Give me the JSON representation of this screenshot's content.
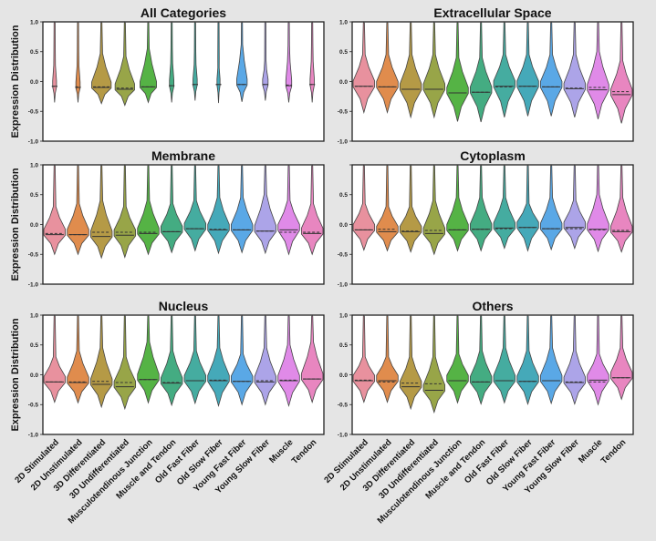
{
  "chart_data": {
    "type": "violin",
    "ylabel": "Expression Distribution",
    "ylim": [
      -1.0,
      1.0
    ],
    "categories": [
      "2D Stimulated",
      "2D Unstimulated",
      "3D Differentiated",
      "3D Undifferentiated",
      "Musculotendinous Junction",
      "Muscle and Tendon",
      "Old Fast Fiber",
      "Old Slow Fiber",
      "Young Fast Fiber",
      "Young Slow Fiber",
      "Muscle",
      "Tendon"
    ],
    "colors": [
      "#e8919e",
      "#e08c4d",
      "#b59a46",
      "#98a548",
      "#55b345",
      "#44ac82",
      "#45aca0",
      "#45a9b9",
      "#5aa8e6",
      "#aca4e8",
      "#e08ae8",
      "#e886c0"
    ],
    "panels": [
      {
        "title": "All Categories",
        "yticks": [
          "1.0",
          "0.5",
          "0.0",
          "-0.5",
          "-1.0"
        ],
        "show_ylabel": true,
        "show_xlabels": false,
        "min": [
          -0.35,
          -0.35,
          -0.37,
          -0.4,
          -0.35,
          -0.35,
          -0.32,
          -0.36,
          -0.34,
          -0.32,
          -0.35,
          -0.35
        ],
        "top": [
          0.5,
          0.5,
          0.47,
          0.42,
          0.55,
          0.55,
          0.5,
          0.4,
          0.62,
          0.35,
          0.6,
          0.6
        ],
        "median": [
          -0.08,
          -0.1,
          -0.1,
          -0.13,
          -0.09,
          -0.07,
          -0.05,
          -0.05,
          -0.05,
          -0.05,
          -0.07,
          -0.05
        ],
        "mean": [
          -0.08,
          -0.09,
          -0.09,
          -0.11,
          -0.09,
          -0.07,
          -0.05,
          -0.05,
          -0.05,
          -0.05,
          -0.06,
          -0.05
        ],
        "width": [
          0.12,
          0.14,
          0.9,
          0.9,
          0.75,
          0.15,
          0.14,
          0.08,
          0.45,
          0.2,
          0.22,
          0.14
        ]
      },
      {
        "title": "Extracellular Space",
        "yticks": [
          "1.0",
          "0.5",
          "0.0",
          "-0.5",
          "-1.0"
        ],
        "show_ylabel": false,
        "show_xlabels": false,
        "min": [
          -0.52,
          -0.52,
          -0.6,
          -0.6,
          -0.67,
          -0.68,
          -0.6,
          -0.58,
          -0.58,
          -0.6,
          -0.63,
          -0.7
        ],
        "top": [
          0.45,
          0.45,
          0.45,
          0.45,
          0.4,
          0.4,
          0.45,
          0.45,
          0.45,
          0.45,
          0.5,
          0.35
        ],
        "median": [
          -0.08,
          -0.09,
          -0.13,
          -0.13,
          -0.19,
          -0.18,
          -0.08,
          -0.08,
          -0.09,
          -0.12,
          -0.14,
          -0.22
        ],
        "mean": [
          -0.08,
          -0.09,
          -0.13,
          -0.13,
          -0.19,
          -0.18,
          -0.09,
          -0.08,
          -0.09,
          -0.11,
          -0.1,
          -0.17
        ],
        "width": [
          1,
          1,
          1,
          1,
          1,
          1,
          1,
          1,
          1,
          1,
          1,
          1
        ]
      },
      {
        "title": "Membrane",
        "yticks": [
          "1.0",
          "0.5",
          "0.0",
          "-0.5",
          "-1.0"
        ],
        "show_ylabel": true,
        "show_xlabels": false,
        "min": [
          -0.5,
          -0.5,
          -0.56,
          -0.55,
          -0.5,
          -0.47,
          -0.44,
          -0.48,
          -0.47,
          -0.48,
          -0.5,
          -0.5
        ],
        "top": [
          0.3,
          0.35,
          0.4,
          0.3,
          0.4,
          0.35,
          0.4,
          0.45,
          0.45,
          0.5,
          0.4,
          0.35
        ],
        "median": [
          -0.17,
          -0.17,
          -0.2,
          -0.18,
          -0.15,
          -0.12,
          -0.07,
          -0.09,
          -0.09,
          -0.11,
          -0.09,
          -0.15
        ],
        "mean": [
          -0.15,
          -0.17,
          -0.13,
          -0.13,
          -0.13,
          -0.12,
          -0.07,
          -0.08,
          -0.09,
          -0.11,
          -0.13,
          -0.13
        ],
        "width": [
          1,
          1,
          1,
          1,
          1,
          1,
          1,
          1,
          1,
          1,
          1,
          1
        ]
      },
      {
        "title": "Cytoplasm",
        "yticks": [
          "",
          "0.5",
          "0.0",
          "-0.5",
          "-1.0"
        ],
        "show_ylabel": false,
        "show_xlabels": false,
        "min": [
          -0.43,
          -0.44,
          -0.46,
          -0.5,
          -0.44,
          -0.44,
          -0.4,
          -0.44,
          -0.42,
          -0.4,
          -0.45,
          -0.46
        ],
        "top": [
          0.35,
          0.3,
          0.3,
          0.4,
          0.45,
          0.45,
          0.45,
          0.35,
          0.45,
          0.4,
          0.5,
          0.45
        ],
        "median": [
          -0.09,
          -0.12,
          -0.12,
          -0.15,
          -0.09,
          -0.08,
          -0.06,
          -0.05,
          -0.07,
          -0.05,
          -0.08,
          -0.12
        ],
        "mean": [
          -0.09,
          -0.08,
          -0.11,
          -0.1,
          -0.09,
          -0.08,
          -0.07,
          -0.05,
          -0.07,
          -0.07,
          -0.09,
          -0.1
        ],
        "width": [
          1,
          1,
          1,
          1,
          1,
          1,
          1,
          1,
          1,
          1,
          1,
          1
        ]
      },
      {
        "title": "Nucleus",
        "yticks": [
          "1.0",
          "0.5",
          "0.0",
          "-0.5",
          "-1.0"
        ],
        "show_ylabel": true,
        "show_xlabels": true,
        "min": [
          -0.46,
          -0.47,
          -0.54,
          -0.57,
          -0.47,
          -0.51,
          -0.48,
          -0.52,
          -0.5,
          -0.5,
          -0.52,
          -0.46
        ],
        "top": [
          0.3,
          0.4,
          0.45,
          0.3,
          0.55,
          0.4,
          0.4,
          0.45,
          0.35,
          0.45,
          0.5,
          0.55
        ],
        "median": [
          -0.12,
          -0.13,
          -0.16,
          -0.2,
          -0.08,
          -0.14,
          -0.1,
          -0.1,
          -0.11,
          -0.12,
          -0.1,
          -0.07
        ],
        "mean": [
          -0.12,
          -0.12,
          -0.11,
          -0.13,
          -0.08,
          -0.13,
          -0.1,
          -0.09,
          -0.11,
          -0.1,
          -0.09,
          -0.07
        ],
        "width": [
          1,
          1,
          1,
          1,
          1,
          1,
          1,
          1,
          1,
          1,
          1,
          1
        ]
      },
      {
        "title": "Others",
        "yticks": [
          "1.0",
          "0.5",
          "0.0",
          "-0.5",
          "-1.0"
        ],
        "show_ylabel": false,
        "show_xlabels": true,
        "min": [
          -0.46,
          -0.46,
          -0.57,
          -0.63,
          -0.47,
          -0.49,
          -0.47,
          -0.49,
          -0.48,
          -0.49,
          -0.5,
          -0.41
        ],
        "top": [
          0.3,
          0.3,
          0.3,
          0.3,
          0.35,
          0.4,
          0.45,
          0.4,
          0.45,
          0.4,
          0.35,
          0.45
        ],
        "median": [
          -0.1,
          -0.1,
          -0.2,
          -0.26,
          -0.1,
          -0.12,
          -0.1,
          -0.11,
          -0.1,
          -0.13,
          -0.09,
          -0.05
        ],
        "mean": [
          -0.09,
          -0.12,
          -0.14,
          -0.15,
          -0.1,
          -0.12,
          -0.1,
          -0.11,
          -0.1,
          -0.12,
          -0.12,
          -0.05
        ],
        "width": [
          1,
          1,
          1,
          1,
          1,
          1,
          1,
          1,
          1,
          1,
          1,
          1
        ]
      }
    ]
  }
}
